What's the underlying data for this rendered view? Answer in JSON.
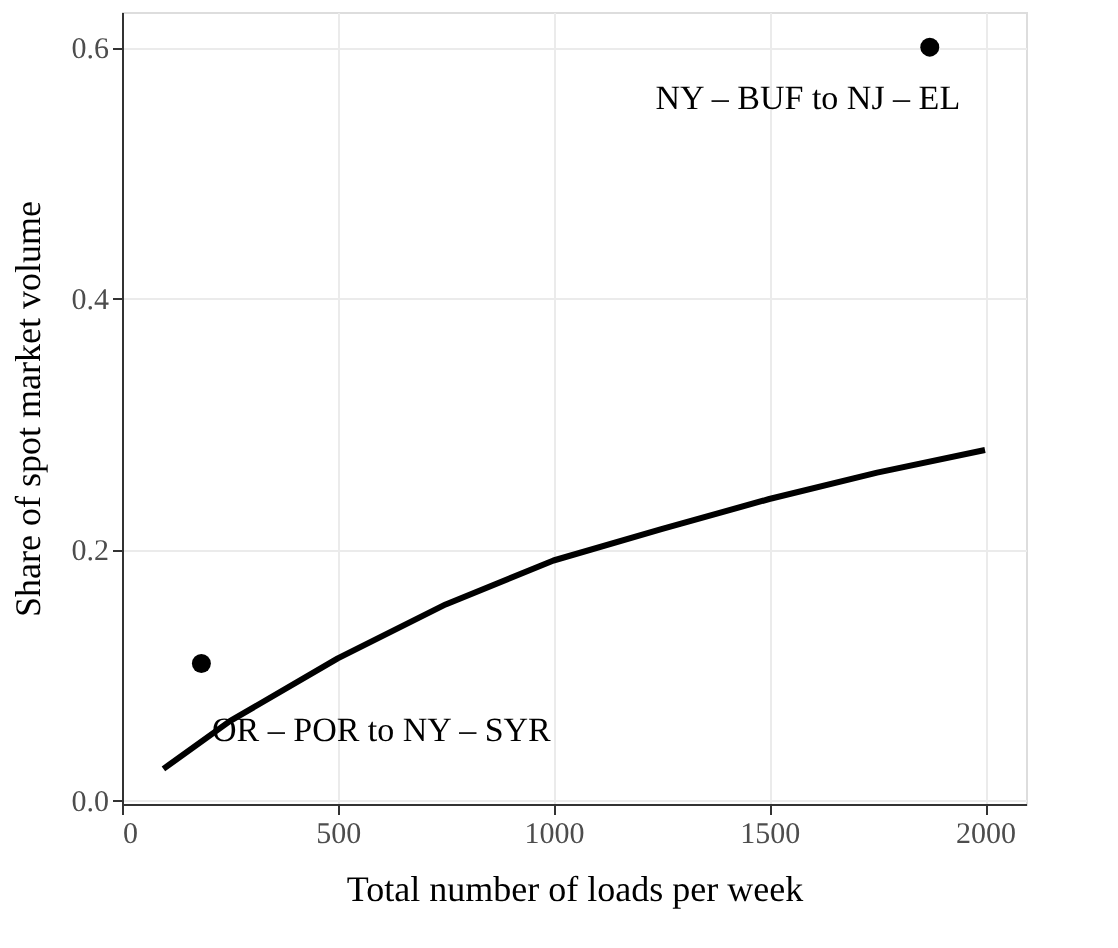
{
  "chart_data": {
    "type": "scatter",
    "xlabel": "Total number of loads per week",
    "ylabel": "Share of spot market volume",
    "xlim": [
      0,
      2095
    ],
    "ylim": [
      -0.003,
      0.628
    ],
    "xticks": [
      0,
      500,
      1000,
      1500,
      2000
    ],
    "yticks": [
      {
        "value": 0,
        "label": "0.0"
      },
      0.2,
      0.4,
      0.6
    ],
    "grid": true,
    "series": [
      {
        "type": "line",
        "color": "#000000",
        "line_style": "solid",
        "x": [
          96,
          250,
          500,
          750,
          1000,
          1250,
          1500,
          1750,
          2000
        ],
        "values": [
          0.025,
          0.063,
          0.113,
          0.156,
          0.191,
          0.216,
          0.24,
          0.261,
          0.279
        ]
      },
      {
        "type": "scatter",
        "color": "#000000",
        "marker": "circle",
        "x": [
          184,
          1872
        ],
        "values": [
          0.109,
          0.6
        ]
      }
    ],
    "annotations": [
      "OR – POR to NY – SYR",
      "NY – BUF to NJ – EL"
    ]
  }
}
